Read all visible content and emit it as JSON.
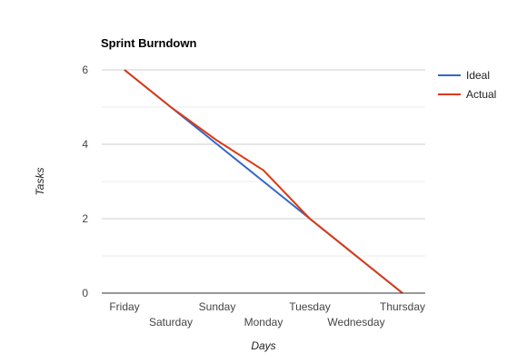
{
  "chart_data": {
    "type": "line",
    "title": "Sprint Burndown",
    "xlabel": "Days",
    "ylabel": "Tasks",
    "categories": [
      "Friday",
      "Saturday",
      "Sunday",
      "Monday",
      "Tuesday",
      "Wednesday",
      "Thursday"
    ],
    "series": [
      {
        "name": "Ideal",
        "color": "#3366cc",
        "values": [
          6,
          5,
          4,
          3,
          2,
          1,
          0
        ]
      },
      {
        "name": "Actual",
        "color": "#dc3912",
        "values": [
          6,
          5,
          4.1,
          3.3,
          2,
          1,
          0
        ]
      }
    ],
    "ylim": [
      0,
      6
    ],
    "yticks": [
      0,
      2,
      4,
      6
    ],
    "grid": true,
    "legend_position": "right"
  }
}
